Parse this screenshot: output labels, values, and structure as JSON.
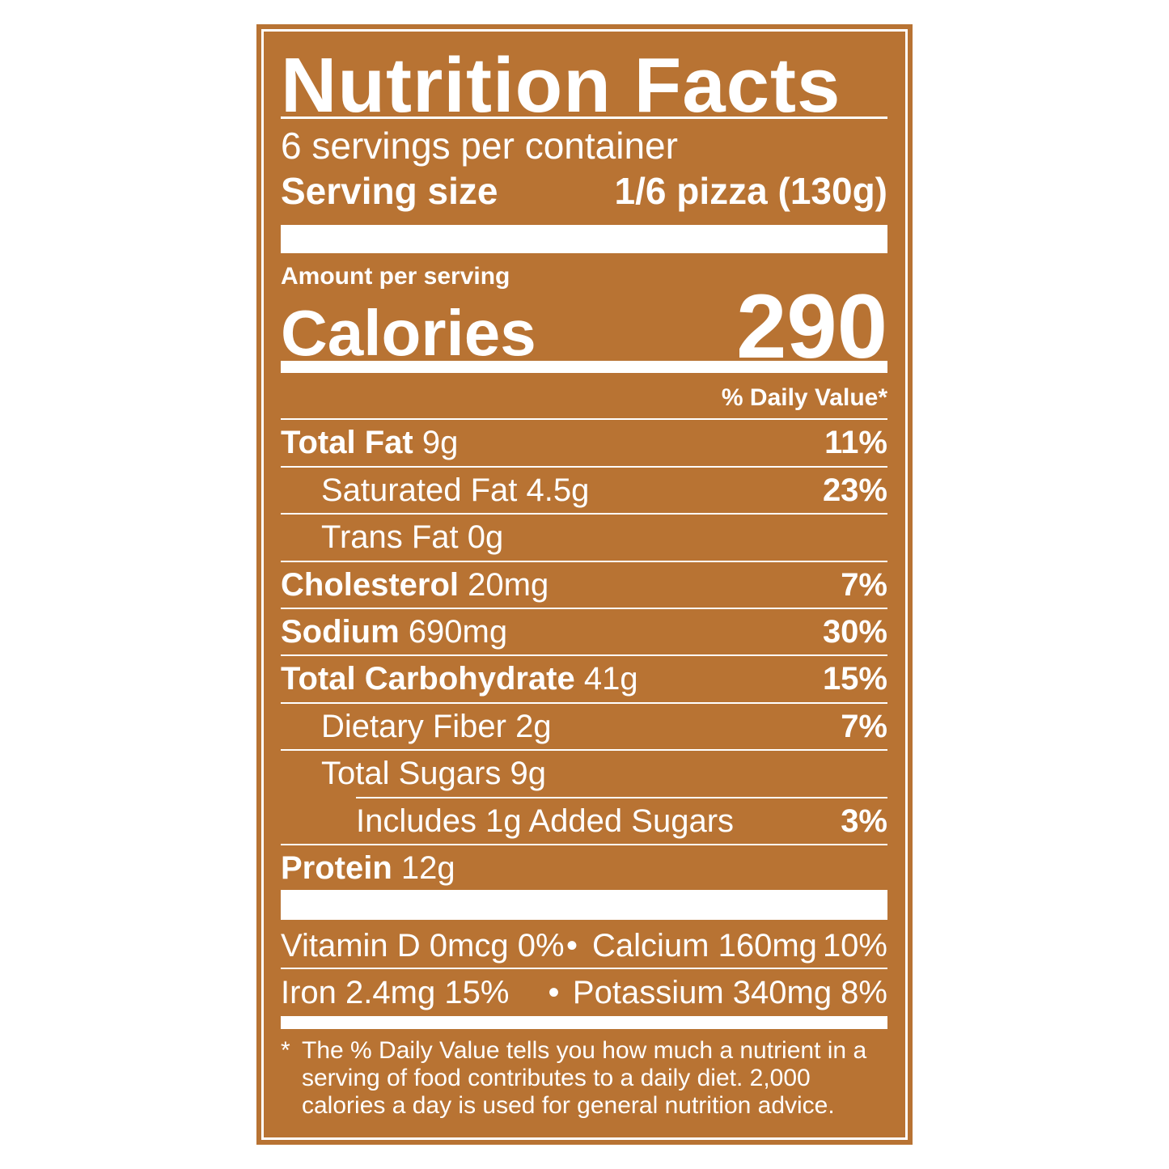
{
  "title": "Nutrition Facts",
  "servings_per_container": "6 servings per container",
  "serving_size": {
    "label": "Serving size",
    "value": "1/6 pizza (130g)"
  },
  "amount_per_serving": "Amount per serving",
  "calories": {
    "label": "Calories",
    "value": "290"
  },
  "daily_value_header": "% Daily Value*",
  "nutrients": [
    {
      "name": "Total Fat",
      "amount": "9g",
      "dv": "11%"
    },
    {
      "name": "Saturated Fat",
      "amount": "4.5g",
      "dv": "23%"
    },
    {
      "name": "Trans Fat",
      "amount": "0g",
      "dv": ""
    },
    {
      "name": "Cholesterol",
      "amount": "20mg",
      "dv": "7%"
    },
    {
      "name": "Sodium",
      "amount": "690mg",
      "dv": "30%"
    },
    {
      "name": "Total Carbohydrate",
      "amount": "41g",
      "dv": "15%"
    },
    {
      "name": "Dietary Fiber",
      "amount": "2g",
      "dv": "7%"
    },
    {
      "name": "Total Sugars",
      "amount": "9g",
      "dv": ""
    },
    {
      "name": "Includes 1g Added Sugars",
      "amount": "",
      "dv": "3%"
    },
    {
      "name": "Protein",
      "amount": "12g",
      "dv": ""
    }
  ],
  "micronutrients": [
    {
      "name": "Vitamin D 0mcg 0%"
    },
    {
      "name": "Calcium 160mg",
      "dv": "10%"
    },
    {
      "name": "Iron 2.4mg 15%"
    },
    {
      "name": "Potassium 340mg 8%"
    }
  ],
  "bullet": "•",
  "footnote": {
    "star": "*",
    "text": "The % Daily Value tells you how much a nutrient in a serving of food contributes to a daily diet. 2,000 calories a day is used for general nutrition advice."
  },
  "colors": {
    "background": "#b87333",
    "text": "#ffffff"
  }
}
